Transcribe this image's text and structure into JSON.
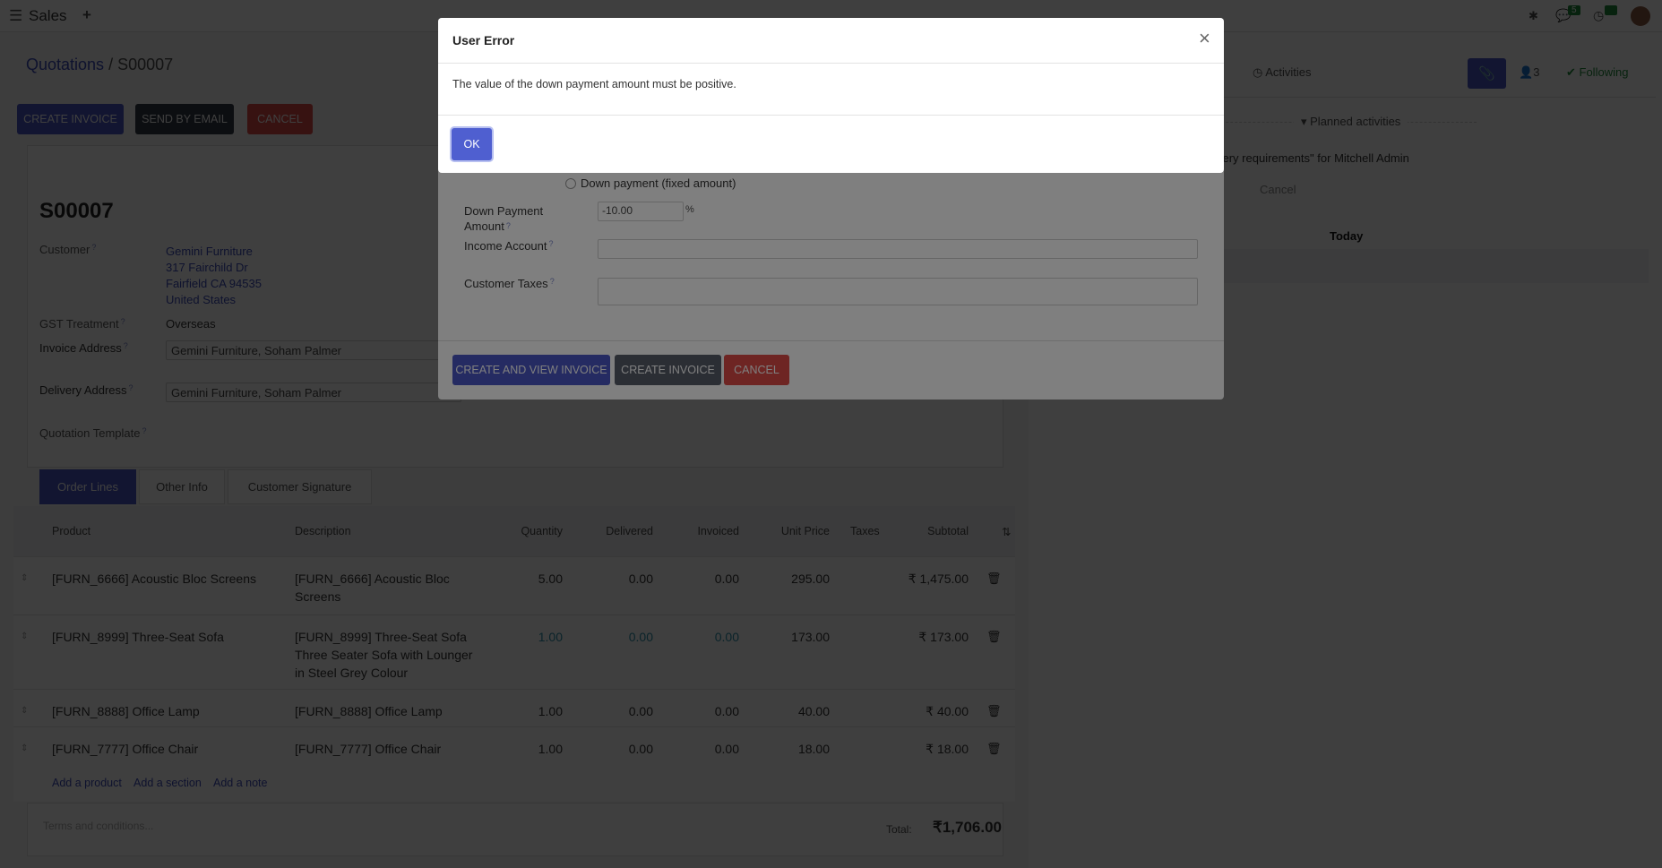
{
  "topbar": {
    "app": "Sales",
    "new_icon": "plus-icon",
    "menu_icon": "hamburger-icon",
    "chat_badge": "5",
    "activity_badge": "5"
  },
  "breadcrumb": {
    "parent": "Quotations",
    "separator": "/",
    "current": "S00007"
  },
  "actions": {
    "create_invoice": "CREATE INVOICE",
    "send_email": "SEND BY EMAIL",
    "cancel": "CANCEL"
  },
  "form": {
    "name": "S00007",
    "customer_label": "Customer",
    "customer_lines": [
      "Gemini Furniture",
      "317 Fairchild Dr",
      "Fairfield CA 94535",
      "United States"
    ],
    "gst_label": "GST Treatment",
    "gst_value": "Overseas",
    "invoice_label": "Invoice Address",
    "invoice_value": "Gemini Furniture, Soham Palmer",
    "delivery_label": "Delivery Address",
    "delivery_value": "Gemini Furniture, Soham Palmer",
    "template_label": "Quotation Template",
    "help": "?"
  },
  "tabs": [
    "Order Lines",
    "Other Info",
    "Customer Signature"
  ],
  "table": {
    "headers": [
      "Product",
      "Description",
      "Quantity",
      "Delivered",
      "Invoiced",
      "Unit Price",
      "Taxes",
      "Subtotal"
    ],
    "rows": [
      {
        "product": "[FURN_6666] Acoustic Bloc Screens",
        "description": "[FURN_6666] Acoustic Bloc Screens",
        "quantity": "5.00",
        "delivered": "0.00",
        "invoiced": "0.00",
        "unit_price": "295.00",
        "subtotal": "₹ 1,475.00"
      },
      {
        "product": "[FURN_8999] Three-Seat Sofa",
        "description": "[FURN_8999] Three-Seat Sofa Three Seater Sofa with Lounger in Steel Grey Colour",
        "quantity": "1.00",
        "delivered": "0.00",
        "invoiced": "0.00",
        "unit_price": "173.00",
        "subtotal": "₹ 173.00"
      },
      {
        "product": "[FURN_8888] Office Lamp",
        "description": "[FURN_8888] Office Lamp",
        "quantity": "1.00",
        "delivered": "0.00",
        "invoiced": "0.00",
        "unit_price": "40.00",
        "subtotal": "₹ 40.00"
      },
      {
        "product": "[FURN_7777] Office Chair",
        "description": "[FURN_7777] Office Chair",
        "quantity": "1.00",
        "delivered": "0.00",
        "invoiced": "0.00",
        "unit_price": "18.00",
        "subtotal": "₹ 18.00"
      }
    ],
    "add_product": "Add a product",
    "add_section": "Add a section",
    "add_note": "Add a note",
    "terms_placeholder": "Terms and conditions...",
    "total_label": "Total:",
    "total_value": "₹1,706.00"
  },
  "chatter": {
    "activities": "Activities",
    "followers": "3",
    "following": "Following",
    "planned": "Planned activities",
    "activity_text": "very requirements\"",
    "activity_for": "for Mitchell Admin",
    "cancel": "Cancel",
    "today": "Today"
  },
  "wizard": {
    "radio_fixed": "Down payment (fixed amount)",
    "amount_label": "Down Payment Amount",
    "amount_value": "-10.00",
    "amount_unit": "%",
    "income_label": "Income Account",
    "taxes_label": "Customer Taxes",
    "create_view": "CREATE AND VIEW INVOICE",
    "create": "CREATE INVOICE",
    "cancel": "CANCEL"
  },
  "error_dialog": {
    "title": "User Error",
    "message": "The value of the down payment amount must be positive.",
    "ok": "OK"
  }
}
